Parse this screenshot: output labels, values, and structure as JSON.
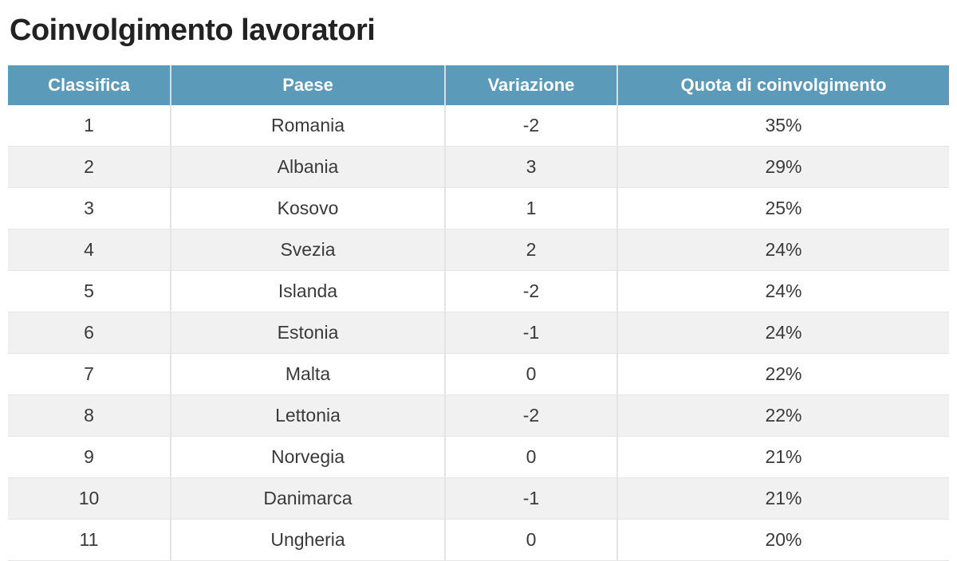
{
  "title": "Coinvolgimento lavoratori",
  "chart_data": {
    "type": "table",
    "title": "Coinvolgimento lavoratori",
    "columns": [
      "Classifica",
      "Paese",
      "Variazione",
      "Quota di coinvolgimento"
    ],
    "rows": [
      [
        "1",
        "Romania",
        "-2",
        "35%"
      ],
      [
        "2",
        "Albania",
        "3",
        "29%"
      ],
      [
        "3",
        "Kosovo",
        "1",
        "25%"
      ],
      [
        "4",
        "Svezia",
        "2",
        "24%"
      ],
      [
        "5",
        "Islanda",
        "-2",
        "24%"
      ],
      [
        "6",
        "Estonia",
        "-1",
        "24%"
      ],
      [
        "7",
        "Malta",
        "0",
        "22%"
      ],
      [
        "8",
        "Lettonia",
        "-2",
        "22%"
      ],
      [
        "9",
        "Norvegia",
        "0",
        "21%"
      ],
      [
        "10",
        "Danimarca",
        "-1",
        "21%"
      ],
      [
        "11",
        "Ungheria",
        "0",
        "20%"
      ]
    ],
    "colors": {
      "header_background": "#5b9ab8",
      "header_text": "#ffffff",
      "row_stripe": "#f1f1f1"
    }
  }
}
